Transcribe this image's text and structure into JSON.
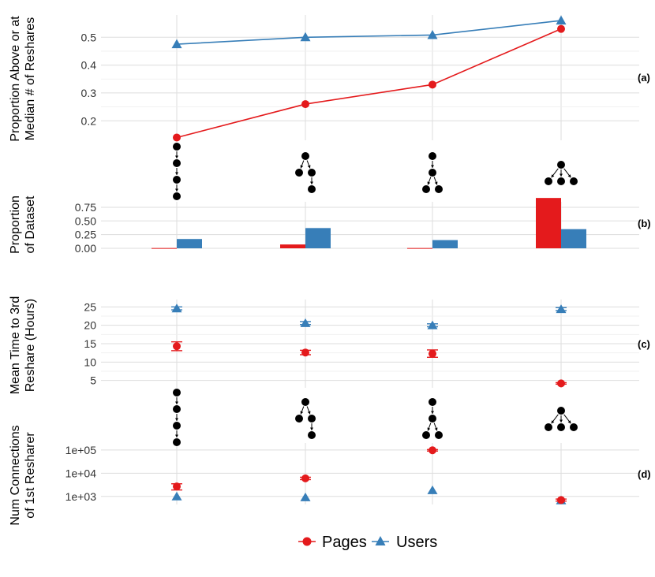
{
  "colors": {
    "pages": "#e41a1c",
    "users": "#377eb8",
    "grid": "#dddddd"
  },
  "legend": {
    "pages": "Pages",
    "users": "Users"
  },
  "chart_data": [
    {
      "panel": "(a)",
      "type": "line",
      "ylabel": [
        "Proportion Above or at",
        "Median # of Reshares"
      ],
      "yticks": [
        "0.2",
        "0.3",
        "0.4",
        "0.5"
      ],
      "ylim": [
        0.13,
        0.58
      ],
      "categories": [
        "chain",
        "one-then-two",
        "two-in-chain",
        "star"
      ],
      "series": [
        {
          "name": "Pages",
          "values": [
            0.14,
            0.26,
            0.33,
            0.53
          ]
        },
        {
          "name": "Users",
          "values": [
            0.475,
            0.5,
            0.508,
            0.56
          ]
        }
      ]
    },
    {
      "panel": "(b)",
      "type": "bar",
      "ylabel": [
        "Proportion",
        "of Dataset"
      ],
      "yticks": [
        "0.00",
        "0.25",
        "0.50",
        "0.75"
      ],
      "ylim": [
        0,
        0.85
      ],
      "categories": [
        "chain",
        "one-then-two",
        "two-in-chain",
        "star"
      ],
      "series": [
        {
          "name": "Pages",
          "values": [
            0.005,
            0.07,
            0.005,
            0.92
          ]
        },
        {
          "name": "Users",
          "values": [
            0.17,
            0.37,
            0.15,
            0.35
          ]
        }
      ]
    },
    {
      "panel": "(c)",
      "type": "scatter",
      "ylabel": [
        "Mean Time to 3rd",
        "Reshare (Hours)"
      ],
      "yticks": [
        "5",
        "10",
        "15",
        "20",
        "25"
      ],
      "ylim": [
        3,
        27
      ],
      "categories": [
        "chain",
        "one-then-two",
        "two-in-chain",
        "star"
      ],
      "series": [
        {
          "name": "Pages",
          "values": [
            14.3,
            12.6,
            12.3,
            4.2
          ],
          "err": [
            1.2,
            0.6,
            1.0,
            0.2
          ]
        },
        {
          "name": "Users",
          "values": [
            24.6,
            20.6,
            20.0,
            24.4
          ],
          "err": [
            0.4,
            0.4,
            0.4,
            0.4
          ]
        }
      ]
    },
    {
      "panel": "(d)",
      "type": "scatter",
      "ylog": true,
      "ylabel": [
        "Num Connections",
        "of 1st Resharer"
      ],
      "yticks": [
        "1e+03",
        "1e+04",
        "1e+05"
      ],
      "ytick_values": [
        1000,
        10000,
        100000
      ],
      "ylim": [
        450,
        200000
      ],
      "categories": [
        "chain",
        "one-then-two",
        "two-in-chain",
        "star"
      ],
      "series": [
        {
          "name": "Pages",
          "values": [
            2700,
            6000,
            97000,
            700
          ],
          "err_lo": [
            1900,
            5300,
            90000,
            630
          ],
          "err_hi": [
            3500,
            6700,
            104000,
            770
          ]
        },
        {
          "name": "Users",
          "values": [
            1000,
            920,
            1850,
            680
          ]
        }
      ]
    }
  ]
}
